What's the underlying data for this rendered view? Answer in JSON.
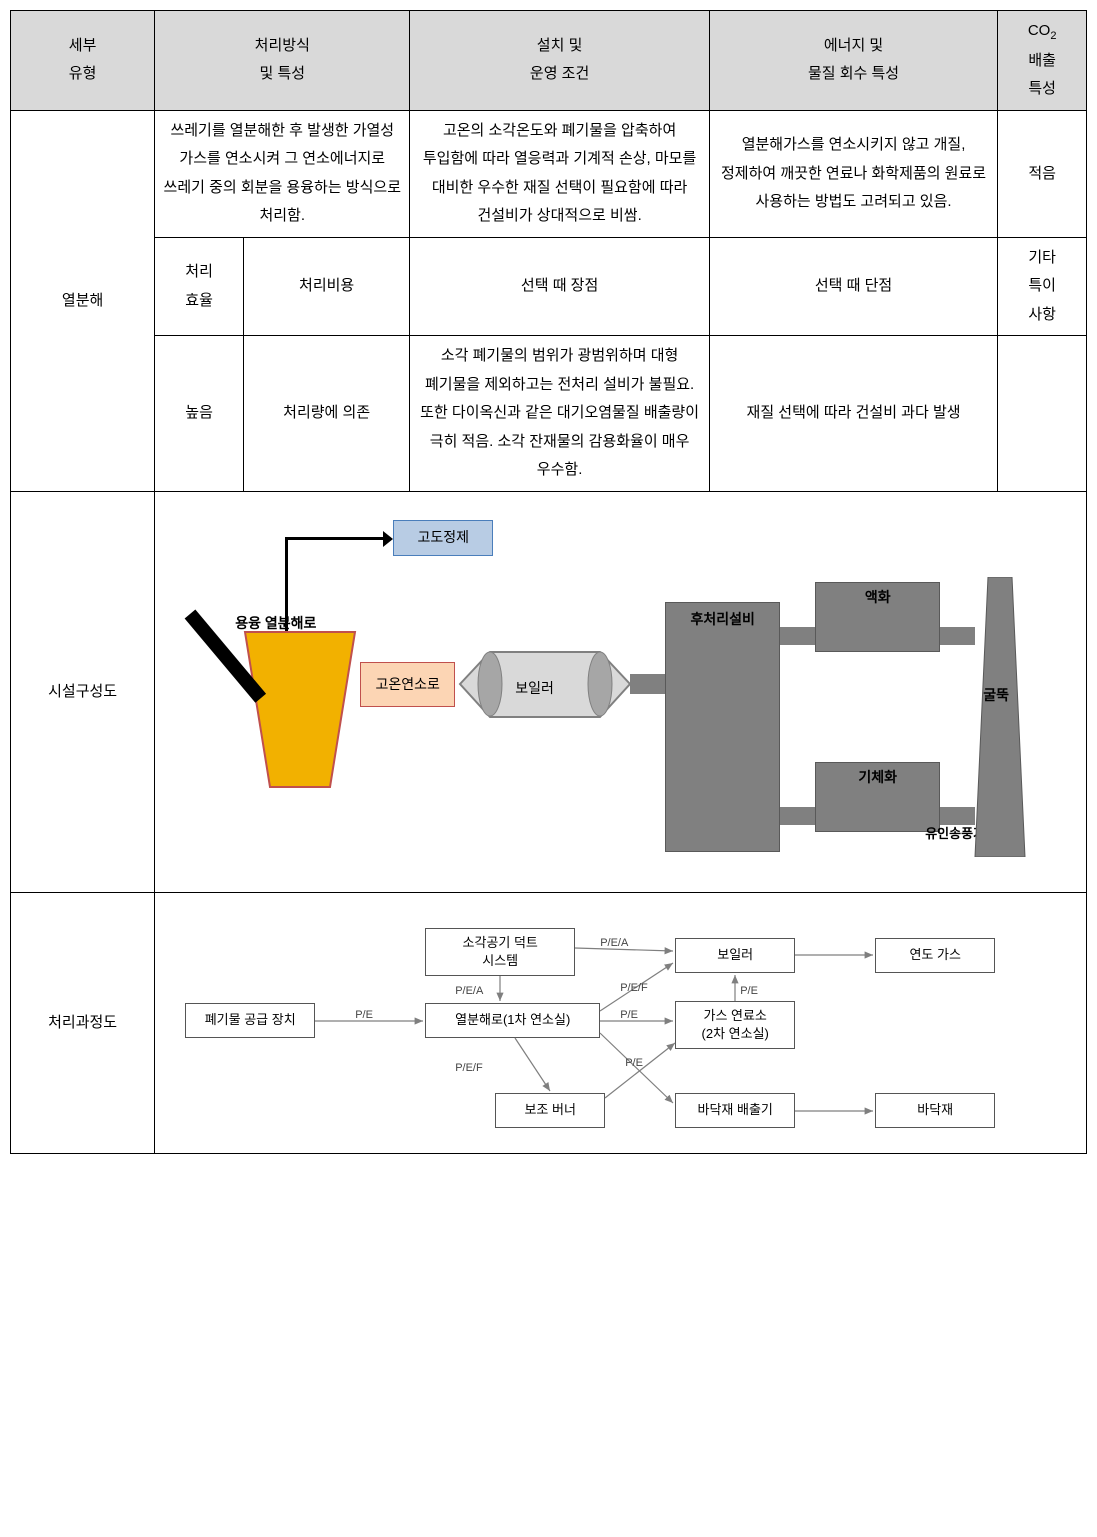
{
  "headers": {
    "c1": "세부\n유형",
    "c2": "처리방식\n및 특성",
    "c3": "설치 및\n운영 조건",
    "c4": "에너지 및\n물질 회수 특성",
    "c5a": "CO",
    "c5b": "2",
    "c5c": "배출\n특성"
  },
  "row1": {
    "type": "열분해",
    "method": "쓰레기를 열분해한 후 발생한 가열성 가스를 연소시켜 그 연소에너지로 쓰레기 중의 회분을 용융하는 방식으로 처리함.",
    "install": "고온의 소각온도와 폐기물을 압축하여 투입함에 따라 열응력과 기계적 손상, 마모를 대비한 우수한 재질 선택이 필요함에 따라 건설비가 상대적으로 비쌈.",
    "energy": "열분해가스를 연소시키지 않고 개질, 정제하여 깨끗한 연료나 화학제품의 원료로 사용하는 방법도 고려되고 있음.",
    "co2": "적음"
  },
  "subheaders": {
    "eff": "처리\n효율",
    "cost": "처리비용",
    "adv": "선택 때 장점",
    "dis": "선택 때 단점",
    "etc": "기타\n특이\n사항"
  },
  "row2": {
    "eff": "높음",
    "cost": "처리량에 의존",
    "adv": "소각 폐기물의 범위가 광범위하며 대형 폐기물을 제외하고는 전처리 설비가 불필요. 또한 다이옥신과 같은 대기오염물질 배출량이 극히 적음. 소각 잔재물의 감용화율이 매우 우수함.",
    "dis": "재질 선택에 따라 건설비 과다 발생",
    "etc": ""
  },
  "labels": {
    "facility": "시설구성도",
    "process": "처리과정도"
  },
  "facility": {
    "advpurify": {
      "text": "고도정제",
      "bg": "#b8cce4",
      "border": "#4a7ebb"
    },
    "pyrolabel": "용융 열분해로",
    "hightemp": {
      "text": "고온연소로",
      "bg": "#fcd5b4",
      "border": "#c0504d"
    },
    "boiler": {
      "text": "보일러",
      "bg": "#d9d9d9",
      "border": "#808080"
    },
    "post": {
      "text": "후처리설비",
      "bg": "#808080",
      "border": "#595959",
      "color": "#000"
    },
    "liquefy": {
      "text": "액화",
      "bg": "#808080",
      "border": "#595959"
    },
    "gasify": {
      "text": "기체화",
      "bg": "#808080",
      "border": "#595959"
    },
    "fan": "유인송풍기",
    "chimney": {
      "text": "굴뚝",
      "bg": "#808080"
    },
    "colors": {
      "pyro_fill": "#f2b100",
      "pyro_stroke": "#c0504d",
      "pipe": "#808080",
      "boiler_cap": "#a6a6a6"
    }
  },
  "process": {
    "boxes": {
      "feed": "폐기물 공급 장치",
      "duct": "소각공기 덕트\n시스템",
      "pyro": "열분해로(1차 연소실)",
      "auxburn": "보조 버너",
      "gasburn": "가스 연료소\n(2차 연소실)",
      "boiler": "보일러",
      "fluegas": "연도 가스",
      "ashout": "바닥재 배출기",
      "ash": "바닥재"
    },
    "edge_labels": {
      "pe": "P/E",
      "pea": "P/E/A",
      "pef": "P/E/F"
    },
    "arrow_color": "#7f7f7f"
  }
}
